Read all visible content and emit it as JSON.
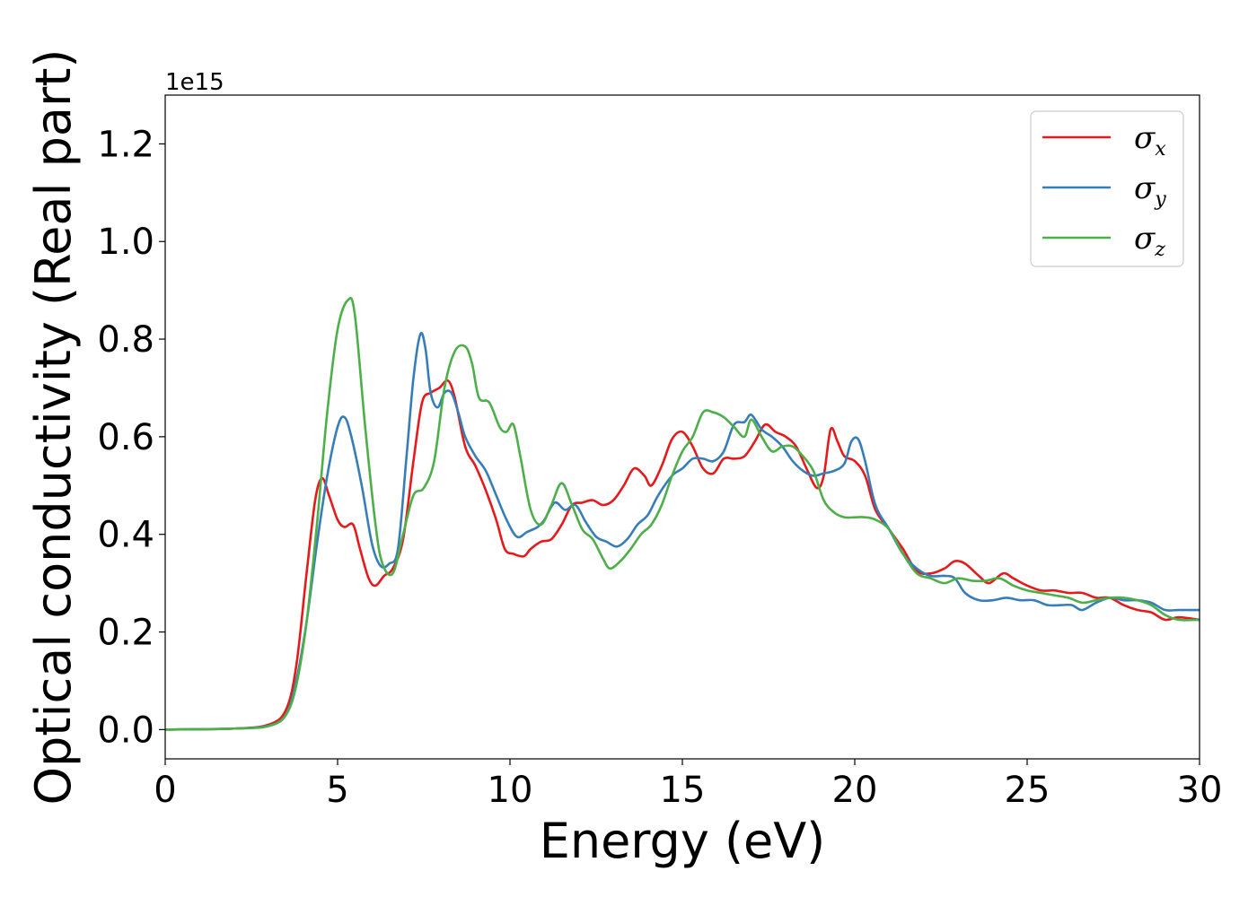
{
  "chart_data": {
    "type": "line",
    "xlabel": "Energy (eV)",
    "ylabel": "Optical conductivity (Real part)",
    "y_offset_text": "1e15",
    "xlim": [
      0,
      30
    ],
    "ylim": [
      -0.06,
      1.3
    ],
    "x_ticks": [
      0,
      5,
      10,
      15,
      20,
      25,
      30
    ],
    "x_tick_labels": [
      "0",
      "5",
      "10",
      "15",
      "20",
      "25",
      "30"
    ],
    "y_ticks": [
      0.0,
      0.2,
      0.4,
      0.6,
      0.8,
      1.0,
      1.2
    ],
    "y_tick_labels": [
      "0.0",
      "0.2",
      "0.4",
      "0.6",
      "0.8",
      "1.0",
      "1.2"
    ],
    "grid": false,
    "legend_position": "top-right",
    "series": [
      {
        "name": "σx",
        "legend_base": "σ",
        "legend_sub": "x",
        "color": "#e41a1c",
        "points": [
          [
            0,
            0
          ],
          [
            2,
            0.002
          ],
          [
            3,
            0.01
          ],
          [
            3.5,
            0.04
          ],
          [
            3.8,
            0.13
          ],
          [
            4.1,
            0.32
          ],
          [
            4.35,
            0.47
          ],
          [
            4.55,
            0.515
          ],
          [
            4.75,
            0.48
          ],
          [
            5.0,
            0.43
          ],
          [
            5.2,
            0.415
          ],
          [
            5.45,
            0.42
          ],
          [
            5.65,
            0.37
          ],
          [
            5.9,
            0.31
          ],
          [
            6.1,
            0.295
          ],
          [
            6.35,
            0.315
          ],
          [
            6.6,
            0.33
          ],
          [
            6.9,
            0.39
          ],
          [
            7.2,
            0.55
          ],
          [
            7.45,
            0.67
          ],
          [
            7.7,
            0.69
          ],
          [
            7.95,
            0.7
          ],
          [
            8.2,
            0.715
          ],
          [
            8.4,
            0.68
          ],
          [
            8.7,
            0.58
          ],
          [
            9.0,
            0.54
          ],
          [
            9.3,
            0.49
          ],
          [
            9.6,
            0.43
          ],
          [
            9.85,
            0.37
          ],
          [
            10.1,
            0.36
          ],
          [
            10.4,
            0.355
          ],
          [
            10.6,
            0.37
          ],
          [
            10.9,
            0.385
          ],
          [
            11.2,
            0.39
          ],
          [
            11.5,
            0.42
          ],
          [
            11.8,
            0.46
          ],
          [
            12.1,
            0.465
          ],
          [
            12.4,
            0.47
          ],
          [
            12.7,
            0.46
          ],
          [
            13.0,
            0.47
          ],
          [
            13.3,
            0.5
          ],
          [
            13.6,
            0.535
          ],
          [
            13.9,
            0.52
          ],
          [
            14.1,
            0.5
          ],
          [
            14.4,
            0.54
          ],
          [
            14.7,
            0.595
          ],
          [
            15.0,
            0.61
          ],
          [
            15.3,
            0.58
          ],
          [
            15.6,
            0.535
          ],
          [
            15.9,
            0.525
          ],
          [
            16.2,
            0.555
          ],
          [
            16.5,
            0.555
          ],
          [
            16.8,
            0.56
          ],
          [
            17.1,
            0.59
          ],
          [
            17.4,
            0.625
          ],
          [
            17.7,
            0.61
          ],
          [
            18.0,
            0.6
          ],
          [
            18.3,
            0.58
          ],
          [
            18.6,
            0.535
          ],
          [
            18.9,
            0.495
          ],
          [
            19.1,
            0.52
          ],
          [
            19.3,
            0.615
          ],
          [
            19.5,
            0.59
          ],
          [
            19.7,
            0.56
          ],
          [
            20.0,
            0.55
          ],
          [
            20.3,
            0.52
          ],
          [
            20.6,
            0.45
          ],
          [
            21.0,
            0.41
          ],
          [
            21.4,
            0.37
          ],
          [
            21.8,
            0.325
          ],
          [
            22.2,
            0.32
          ],
          [
            22.6,
            0.33
          ],
          [
            22.9,
            0.345
          ],
          [
            23.2,
            0.34
          ],
          [
            23.6,
            0.315
          ],
          [
            23.9,
            0.3
          ],
          [
            24.3,
            0.32
          ],
          [
            24.6,
            0.31
          ],
          [
            25.0,
            0.295
          ],
          [
            25.4,
            0.285
          ],
          [
            25.8,
            0.285
          ],
          [
            26.2,
            0.28
          ],
          [
            26.6,
            0.28
          ],
          [
            27.0,
            0.27
          ],
          [
            27.4,
            0.27
          ],
          [
            27.8,
            0.255
          ],
          [
            28.2,
            0.245
          ],
          [
            28.6,
            0.24
          ],
          [
            29.0,
            0.225
          ],
          [
            29.4,
            0.23
          ],
          [
            30.0,
            0.225
          ]
        ]
      },
      {
        "name": "σy",
        "legend_base": "σ",
        "legend_sub": "y",
        "color": "#377eb8",
        "points": [
          [
            0,
            0
          ],
          [
            2,
            0.002
          ],
          [
            3,
            0.008
          ],
          [
            3.5,
            0.03
          ],
          [
            3.8,
            0.1
          ],
          [
            4.1,
            0.22
          ],
          [
            4.4,
            0.38
          ],
          [
            4.7,
            0.52
          ],
          [
            5.0,
            0.62
          ],
          [
            5.2,
            0.64
          ],
          [
            5.4,
            0.6
          ],
          [
            5.7,
            0.5
          ],
          [
            6.0,
            0.38
          ],
          [
            6.25,
            0.335
          ],
          [
            6.5,
            0.34
          ],
          [
            6.75,
            0.37
          ],
          [
            7.0,
            0.56
          ],
          [
            7.2,
            0.72
          ],
          [
            7.4,
            0.81
          ],
          [
            7.55,
            0.78
          ],
          [
            7.7,
            0.69
          ],
          [
            7.9,
            0.66
          ],
          [
            8.1,
            0.69
          ],
          [
            8.3,
            0.69
          ],
          [
            8.5,
            0.65
          ],
          [
            8.7,
            0.6
          ],
          [
            9.0,
            0.56
          ],
          [
            9.3,
            0.53
          ],
          [
            9.6,
            0.48
          ],
          [
            9.9,
            0.43
          ],
          [
            10.2,
            0.395
          ],
          [
            10.5,
            0.405
          ],
          [
            10.8,
            0.415
          ],
          [
            11.0,
            0.43
          ],
          [
            11.3,
            0.465
          ],
          [
            11.6,
            0.45
          ],
          [
            11.9,
            0.46
          ],
          [
            12.2,
            0.425
          ],
          [
            12.5,
            0.395
          ],
          [
            12.8,
            0.385
          ],
          [
            13.1,
            0.375
          ],
          [
            13.4,
            0.39
          ],
          [
            13.7,
            0.42
          ],
          [
            14.0,
            0.44
          ],
          [
            14.3,
            0.48
          ],
          [
            14.7,
            0.52
          ],
          [
            15.0,
            0.535
          ],
          [
            15.3,
            0.555
          ],
          [
            15.6,
            0.555
          ],
          [
            15.9,
            0.55
          ],
          [
            16.2,
            0.57
          ],
          [
            16.5,
            0.625
          ],
          [
            16.8,
            0.63
          ],
          [
            17.0,
            0.645
          ],
          [
            17.3,
            0.615
          ],
          [
            17.6,
            0.6
          ],
          [
            17.9,
            0.58
          ],
          [
            18.2,
            0.55
          ],
          [
            18.5,
            0.53
          ],
          [
            18.8,
            0.52
          ],
          [
            19.1,
            0.525
          ],
          [
            19.4,
            0.53
          ],
          [
            19.7,
            0.545
          ],
          [
            19.9,
            0.59
          ],
          [
            20.1,
            0.595
          ],
          [
            20.3,
            0.55
          ],
          [
            20.6,
            0.46
          ],
          [
            21.0,
            0.41
          ],
          [
            21.4,
            0.36
          ],
          [
            21.8,
            0.33
          ],
          [
            22.2,
            0.315
          ],
          [
            22.6,
            0.315
          ],
          [
            22.9,
            0.31
          ],
          [
            23.2,
            0.28
          ],
          [
            23.6,
            0.265
          ],
          [
            24.0,
            0.265
          ],
          [
            24.4,
            0.27
          ],
          [
            24.8,
            0.265
          ],
          [
            25.2,
            0.265
          ],
          [
            25.6,
            0.255
          ],
          [
            26.0,
            0.255
          ],
          [
            26.3,
            0.255
          ],
          [
            26.6,
            0.245
          ],
          [
            27.0,
            0.26
          ],
          [
            27.4,
            0.27
          ],
          [
            27.8,
            0.265
          ],
          [
            28.2,
            0.265
          ],
          [
            28.6,
            0.26
          ],
          [
            29.0,
            0.245
          ],
          [
            29.4,
            0.245
          ],
          [
            30.0,
            0.245
          ]
        ]
      },
      {
        "name": "σz",
        "legend_base": "σ",
        "legend_sub": "z",
        "color": "#4daf4a",
        "points": [
          [
            0,
            0
          ],
          [
            2,
            0.002
          ],
          [
            3,
            0.007
          ],
          [
            3.5,
            0.03
          ],
          [
            3.8,
            0.09
          ],
          [
            4.1,
            0.22
          ],
          [
            4.4,
            0.42
          ],
          [
            4.7,
            0.65
          ],
          [
            5.0,
            0.82
          ],
          [
            5.3,
            0.88
          ],
          [
            5.5,
            0.85
          ],
          [
            5.8,
            0.62
          ],
          [
            6.1,
            0.42
          ],
          [
            6.3,
            0.34
          ],
          [
            6.6,
            0.32
          ],
          [
            6.9,
            0.4
          ],
          [
            7.2,
            0.48
          ],
          [
            7.5,
            0.495
          ],
          [
            7.8,
            0.55
          ],
          [
            8.1,
            0.7
          ],
          [
            8.4,
            0.775
          ],
          [
            8.7,
            0.785
          ],
          [
            8.9,
            0.75
          ],
          [
            9.1,
            0.68
          ],
          [
            9.4,
            0.67
          ],
          [
            9.7,
            0.62
          ],
          [
            9.9,
            0.61
          ],
          [
            10.1,
            0.625
          ],
          [
            10.3,
            0.56
          ],
          [
            10.6,
            0.45
          ],
          [
            10.9,
            0.42
          ],
          [
            11.2,
            0.46
          ],
          [
            11.5,
            0.505
          ],
          [
            11.8,
            0.46
          ],
          [
            12.1,
            0.41
          ],
          [
            12.4,
            0.39
          ],
          [
            12.7,
            0.35
          ],
          [
            12.9,
            0.33
          ],
          [
            13.2,
            0.345
          ],
          [
            13.5,
            0.37
          ],
          [
            13.8,
            0.4
          ],
          [
            14.1,
            0.42
          ],
          [
            14.4,
            0.46
          ],
          [
            14.7,
            0.52
          ],
          [
            15.0,
            0.57
          ],
          [
            15.3,
            0.6
          ],
          [
            15.6,
            0.65
          ],
          [
            15.9,
            0.65
          ],
          [
            16.2,
            0.64
          ],
          [
            16.5,
            0.62
          ],
          [
            16.8,
            0.6
          ],
          [
            17.0,
            0.635
          ],
          [
            17.3,
            0.6
          ],
          [
            17.6,
            0.57
          ],
          [
            17.9,
            0.58
          ],
          [
            18.2,
            0.58
          ],
          [
            18.5,
            0.56
          ],
          [
            18.8,
            0.53
          ],
          [
            19.1,
            0.47
          ],
          [
            19.4,
            0.445
          ],
          [
            19.7,
            0.435
          ],
          [
            20.0,
            0.435
          ],
          [
            20.3,
            0.435
          ],
          [
            20.6,
            0.43
          ],
          [
            21.0,
            0.41
          ],
          [
            21.4,
            0.36
          ],
          [
            21.8,
            0.32
          ],
          [
            22.2,
            0.31
          ],
          [
            22.6,
            0.3
          ],
          [
            23.0,
            0.31
          ],
          [
            23.4,
            0.305
          ],
          [
            23.8,
            0.305
          ],
          [
            24.2,
            0.31
          ],
          [
            24.6,
            0.295
          ],
          [
            25.0,
            0.285
          ],
          [
            25.4,
            0.28
          ],
          [
            25.8,
            0.275
          ],
          [
            26.2,
            0.27
          ],
          [
            26.6,
            0.26
          ],
          [
            27.0,
            0.265
          ],
          [
            27.4,
            0.27
          ],
          [
            27.8,
            0.27
          ],
          [
            28.2,
            0.265
          ],
          [
            28.6,
            0.255
          ],
          [
            29.0,
            0.235
          ],
          [
            29.4,
            0.225
          ],
          [
            30.0,
            0.225
          ]
        ]
      }
    ]
  }
}
